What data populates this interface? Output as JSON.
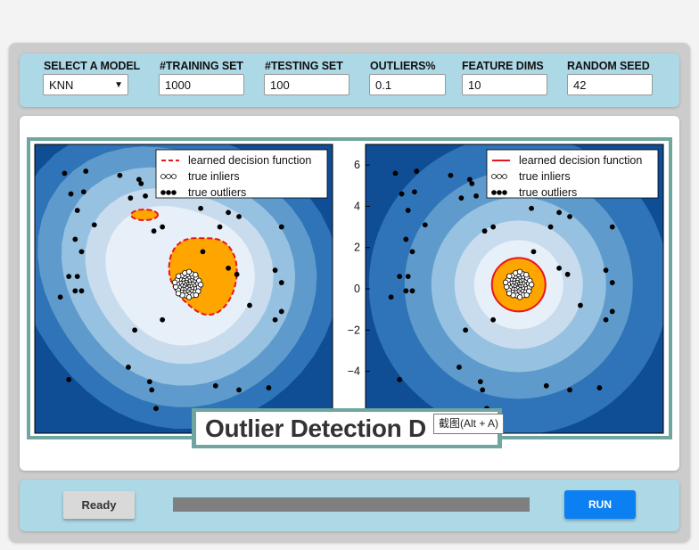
{
  "config": {
    "model": {
      "label": "SELECT A MODEL",
      "value": "KNN",
      "options": [
        "KNN"
      ]
    },
    "training_set": {
      "label": "#TRAINING SET",
      "value": "1000"
    },
    "testing_set": {
      "label": "#TESTING SET",
      "value": "100"
    },
    "outliers": {
      "label": "OUTLIERS%",
      "value": "0.1"
    },
    "feature_dims": {
      "label": "FEATURE DIMS",
      "value": "10"
    },
    "random_seed": {
      "label": "RANDOM SEED",
      "value": "42"
    }
  },
  "figure": {
    "banner_title": "Outlier Detection D",
    "tooltip": "截图(Alt + A)",
    "colors": {
      "level_0": "#0f4d95",
      "level_1": "#2f74b8",
      "level_2": "#5e9bcc",
      "level_3": "#96c1e0",
      "level_4": "#c8dcee",
      "level_5": "#e7f0f8",
      "inlier_region": "#ffa500",
      "boundary": "#e8141e"
    }
  },
  "chart_data": [
    {
      "type": "scatter",
      "panel": "left",
      "legend": {
        "position": "top-right",
        "entries": [
          "learned decision function",
          "true inliers",
          "true outliers"
        ],
        "boundary_style": "dashed"
      },
      "ylim": [
        -7,
        7
      ],
      "inlier_center": [
        0.2,
        0.2
      ],
      "outliers": [
        [
          -5.6,
          5.6
        ],
        [
          -4.6,
          5.7
        ],
        [
          -3.0,
          5.5
        ],
        [
          -5.3,
          4.6
        ],
        [
          -4.7,
          4.7
        ],
        [
          -5.0,
          3.8
        ],
        [
          -2.1,
          5.3
        ],
        [
          -2.5,
          4.4
        ],
        [
          -1.8,
          4.5
        ],
        [
          -2.0,
          5.1
        ],
        [
          0.8,
          3.9
        ],
        [
          -4.2,
          3.1
        ],
        [
          -5.1,
          2.4
        ],
        [
          -4.8,
          1.8
        ],
        [
          -1.4,
          2.8
        ],
        [
          -1.0,
          3.0
        ],
        [
          2.1,
          3.7
        ],
        [
          2.6,
          3.5
        ],
        [
          1.7,
          3.0
        ],
        [
          4.6,
          3.0
        ],
        [
          -5.4,
          0.6
        ],
        [
          -5.0,
          0.6
        ],
        [
          -5.1,
          -0.1
        ],
        [
          -4.8,
          -0.1
        ],
        [
          -5.8,
          -0.4
        ],
        [
          0.9,
          1.8
        ],
        [
          2.1,
          1.0
        ],
        [
          2.5,
          0.7
        ],
        [
          3.1,
          -0.8
        ],
        [
          -1.0,
          -1.5
        ],
        [
          -2.3,
          -2.0
        ],
        [
          4.3,
          0.9
        ],
        [
          4.6,
          0.3
        ],
        [
          4.3,
          -1.5
        ],
        [
          4.6,
          -1.1
        ],
        [
          -2.6,
          -3.8
        ],
        [
          -1.6,
          -4.5
        ],
        [
          -1.5,
          -4.9
        ],
        [
          -5.4,
          -4.4
        ],
        [
          -1.3,
          -5.8
        ],
        [
          1.5,
          -4.7
        ],
        [
          2.6,
          -4.9
        ],
        [
          4.0,
          -4.8
        ]
      ]
    },
    {
      "type": "scatter",
      "panel": "right",
      "legend": {
        "position": "top-right",
        "entries": [
          "learned decision function",
          "true inliers",
          "true outliers"
        ],
        "boundary_style": "solid"
      },
      "ylim": [
        -7,
        7
      ],
      "yticks": [
        -4,
        -2,
        0,
        2,
        4,
        6
      ],
      "inlier_center": [
        0.2,
        0.2
      ],
      "outliers": [
        [
          -5.6,
          5.6
        ],
        [
          -4.6,
          5.7
        ],
        [
          -3.0,
          5.5
        ],
        [
          -5.3,
          4.6
        ],
        [
          -4.7,
          4.7
        ],
        [
          -5.0,
          3.8
        ],
        [
          -2.1,
          5.3
        ],
        [
          -2.5,
          4.4
        ],
        [
          -1.8,
          4.5
        ],
        [
          -2.0,
          5.1
        ],
        [
          0.8,
          3.9
        ],
        [
          -4.2,
          3.1
        ],
        [
          -5.1,
          2.4
        ],
        [
          -4.8,
          1.8
        ],
        [
          -1.4,
          2.8
        ],
        [
          -1.0,
          3.0
        ],
        [
          2.1,
          3.7
        ],
        [
          2.6,
          3.5
        ],
        [
          1.7,
          3.0
        ],
        [
          4.6,
          3.0
        ],
        [
          -5.4,
          0.6
        ],
        [
          -5.0,
          0.6
        ],
        [
          -5.1,
          -0.1
        ],
        [
          -4.8,
          -0.1
        ],
        [
          -5.8,
          -0.4
        ],
        [
          0.9,
          1.8
        ],
        [
          2.1,
          1.0
        ],
        [
          2.5,
          0.7
        ],
        [
          3.1,
          -0.8
        ],
        [
          -1.0,
          -1.5
        ],
        [
          -2.3,
          -2.0
        ],
        [
          4.3,
          0.9
        ],
        [
          4.6,
          0.3
        ],
        [
          4.3,
          -1.5
        ],
        [
          4.6,
          -1.1
        ],
        [
          -2.6,
          -3.8
        ],
        [
          -1.6,
          -4.5
        ],
        [
          -1.5,
          -4.9
        ],
        [
          -5.4,
          -4.4
        ],
        [
          -1.3,
          -5.8
        ],
        [
          1.5,
          -4.7
        ],
        [
          2.6,
          -4.9
        ],
        [
          4.0,
          -4.8
        ]
      ]
    }
  ],
  "status": {
    "state": "Ready",
    "progress": 0
  },
  "actions": {
    "run_label": "RUN"
  }
}
